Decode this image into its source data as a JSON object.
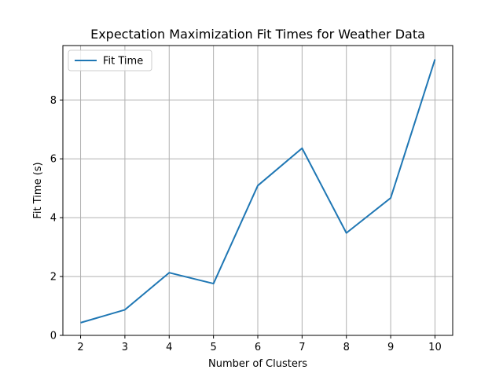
{
  "chart_data": {
    "type": "line",
    "title": "Expectation Maximization Fit Times for Weather Data",
    "xlabel": "Number of Clusters",
    "ylabel": "Fit Time (s)",
    "x": [
      2,
      3,
      4,
      5,
      6,
      7,
      8,
      9,
      10
    ],
    "series": [
      {
        "name": "Fit Time",
        "values": [
          0.43,
          0.87,
          2.13,
          1.76,
          5.09,
          6.36,
          3.48,
          4.67,
          9.38
        ],
        "color": "#1f77b4"
      }
    ],
    "xticks": [
      "2",
      "3",
      "4",
      "5",
      "6",
      "7",
      "8",
      "9",
      "10"
    ],
    "yticks": [
      "0",
      "2",
      "4",
      "6",
      "8"
    ],
    "xlim": [
      1.6,
      10.4
    ],
    "ylim": [
      0,
      9.85
    ],
    "grid": true,
    "legend_position": "upper left"
  }
}
